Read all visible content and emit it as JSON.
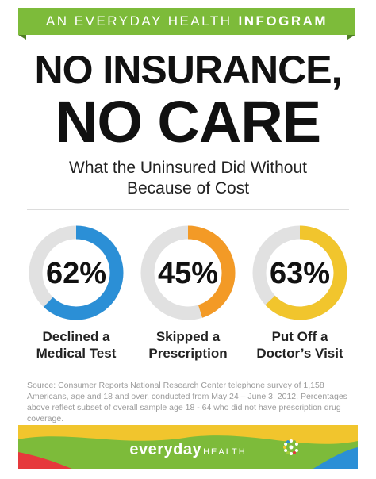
{
  "banner_top": {
    "prefix": "AN EVERYDAY HEALTH",
    "emphasis": "INFOGRAM",
    "color": "#7dbb3a"
  },
  "headline": {
    "line1": "NO INSURANCE,",
    "line2": "NO CARE"
  },
  "subtitle": {
    "line1": "What the Uninsured Did Without",
    "line2": "Because of Cost"
  },
  "chart_data": {
    "type": "donut",
    "ring_track_color": "#e1e1e1",
    "items": [
      {
        "label_line1": "Declined a",
        "label_line2": "Medical Test",
        "value": 62,
        "display": "62%",
        "color": "#2b8fd6"
      },
      {
        "label_line1": "Skipped a",
        "label_line2": "Prescription",
        "value": 45,
        "display": "45%",
        "color": "#f39a26"
      },
      {
        "label_line1": "Put Off a",
        "label_line2": "Doctor’s Visit",
        "value": 63,
        "display": "63%",
        "color": "#f1c52d"
      }
    ]
  },
  "source": "Source: Consumer Reports National Research Center telephone survey of 1,158 Americans, age and 18 and over, conducted from May 24 – June 3, 2012. Percentages above reflect subset of overall sample age 18 - 64 who did not have prescription drug coverage.",
  "footer_logo": {
    "word": "everyday",
    "suffix": "HEALTH",
    "colors": [
      "#7dbb3a",
      "#f1c52d",
      "#e6393c",
      "#2b8fd6",
      "#a3cc3a"
    ]
  }
}
